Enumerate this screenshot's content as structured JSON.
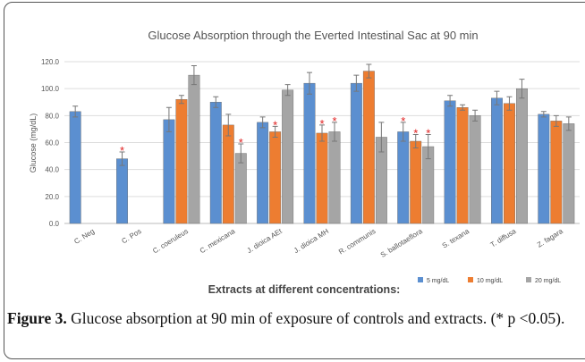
{
  "chart_data": {
    "type": "bar",
    "title": "Glucose Absorption through the Everted Intestinal Sac at 90 min",
    "ylabel": "Glucose (mg/dL)",
    "xlabel": "Extracts at different concentrations:",
    "categories": [
      "C. Neg",
      "C. Pos",
      "C. coeruleus",
      "C. mexicana",
      "J. dioica AEt",
      "J. dioica MH",
      "R. communis",
      "S. ballotaeflora",
      "S. texana",
      "T. diffusa",
      "Z. fagara"
    ],
    "series": [
      {
        "name": "5 mg/dL",
        "color": "#5b8fd0",
        "values": [
          83,
          48,
          77,
          90,
          75,
          104,
          104,
          68,
          91,
          93,
          81
        ],
        "errors": [
          4,
          5,
          9,
          4,
          4,
          8,
          6,
          7,
          4,
          5,
          2
        ],
        "stars": [
          null,
          "*",
          null,
          null,
          null,
          null,
          null,
          "*",
          null,
          null,
          null
        ]
      },
      {
        "name": "10 mg/dL",
        "color": "#ed7d31",
        "values": [
          null,
          null,
          92,
          73,
          68,
          67,
          113,
          61,
          86,
          89,
          76
        ],
        "errors": [
          null,
          null,
          3,
          8,
          4,
          6,
          5,
          5,
          2,
          5,
          4
        ],
        "stars": [
          null,
          null,
          null,
          null,
          "*",
          "*",
          null,
          "*",
          null,
          null,
          null
        ]
      },
      {
        "name": "20 mg/dL",
        "color": "#a5a5a5",
        "values": [
          null,
          null,
          110,
          52,
          99,
          68,
          64,
          57,
          80,
          100,
          74
        ],
        "errors": [
          null,
          null,
          7,
          7,
          4,
          7,
          11,
          9,
          4,
          7,
          5
        ],
        "stars": [
          null,
          null,
          null,
          "*",
          null,
          "*",
          null,
          "*",
          null,
          null,
          null
        ]
      }
    ],
    "ylim": [
      0,
      120
    ],
    "yticks": [
      {
        "value": 0,
        "label": "0.0"
      },
      {
        "value": 20,
        "label": "20.0"
      },
      {
        "value": 40,
        "label": "40.0"
      },
      {
        "value": 60,
        "label": "60.0"
      },
      {
        "value": 80,
        "label": "80.0"
      },
      {
        "value": 100,
        "label": "100.0"
      },
      {
        "value": 120,
        "label": "120.0"
      }
    ],
    "grid": true
  },
  "caption": {
    "label": "Figure 3.",
    "text": " Glucose absorption at 90 min of exposure of controls and extracts. (* p <0.05)."
  }
}
